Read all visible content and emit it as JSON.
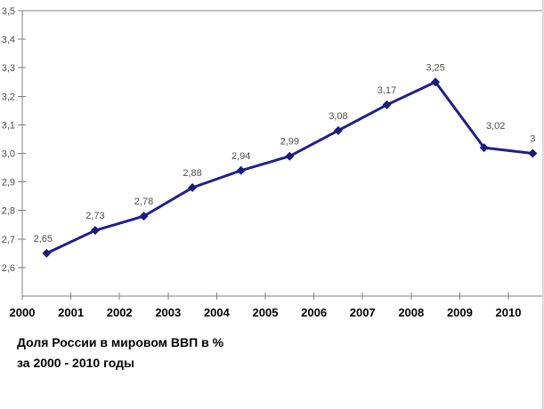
{
  "chart_data": {
    "type": "line",
    "title": "Доля России в мировом ВВП в % за 2000 - 2010 годы",
    "xlabel": "",
    "ylabel": "",
    "categories": [
      2000,
      2001,
      2002,
      2003,
      2004,
      2005,
      2006,
      2007,
      2008,
      2009,
      2010
    ],
    "values": [
      2.65,
      2.73,
      2.78,
      2.88,
      2.94,
      2.99,
      3.08,
      3.17,
      3.25,
      3.02,
      3.0
    ],
    "point_labels": [
      "2,65",
      "2,73",
      "2,78",
      "2,88",
      "2,94",
      "2,99",
      "3,08",
      "3,17",
      "3,25",
      "3,02",
      "3"
    ],
    "x_tick_labels": [
      "2000",
      "2001",
      "2002",
      "2003",
      "2004",
      "2005",
      "2006",
      "2007",
      "2008",
      "2009",
      "2010"
    ],
    "y_tick_labels": [
      "3,5",
      "3,4",
      "3,3",
      "3,2",
      "3,1",
      "3,0",
      "2,9",
      "2,8",
      "2,7",
      "2,6"
    ],
    "y_tick_values": [
      3.5,
      3.4,
      3.3,
      3.2,
      3.1,
      3.0,
      2.9,
      2.8,
      2.7,
      2.6
    ],
    "ylim": [
      2.5,
      3.5
    ],
    "grid": false,
    "legend_position": "none",
    "marker_shape": "diamond",
    "colors": {
      "line": "#1f1f8c",
      "marker": "#1a1a78",
      "axis": "#7f7f7f",
      "tick_label_y": "#4d4d4d",
      "tick_label_x": "#000000",
      "data_label": "#4d4d4d"
    }
  },
  "caption": {
    "line1": "Доля России в мировом ВВП в %",
    "line2": "за 2000 - 2010 годы"
  }
}
